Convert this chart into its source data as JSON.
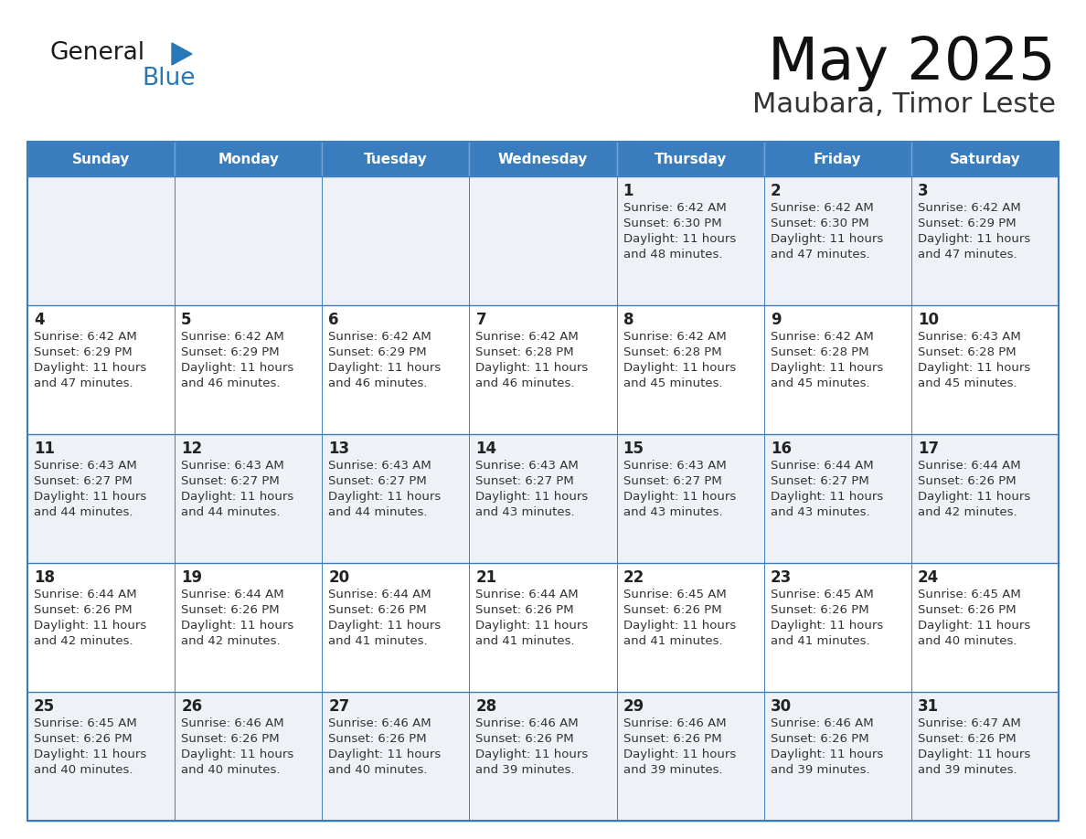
{
  "title": "May 2025",
  "subtitle": "Maubara, Timor Leste",
  "days_of_week": [
    "Sunday",
    "Monday",
    "Tuesday",
    "Wednesday",
    "Thursday",
    "Friday",
    "Saturday"
  ],
  "header_bg": "#3a7dbf",
  "header_text": "#ffffff",
  "row_bg_odd": "#eef2f7",
  "row_bg_even": "#ffffff",
  "border_color": "#3a7dbf",
  "day_number_color": "#222222",
  "cell_text_color": "#333333",
  "title_color": "#111111",
  "subtitle_color": "#333333",
  "general_text_color": "#1a1a1a",
  "blue_logo_color": "#2878b8",
  "triangle_color": "#2878b8",
  "calendar": [
    [
      {
        "day": "",
        "sunrise": "",
        "sunset": "",
        "daylight": ""
      },
      {
        "day": "",
        "sunrise": "",
        "sunset": "",
        "daylight": ""
      },
      {
        "day": "",
        "sunrise": "",
        "sunset": "",
        "daylight": ""
      },
      {
        "day": "",
        "sunrise": "",
        "sunset": "",
        "daylight": ""
      },
      {
        "day": "1",
        "sunrise": "6:42 AM",
        "sunset": "6:30 PM",
        "daylight": "11 hours and 48 minutes."
      },
      {
        "day": "2",
        "sunrise": "6:42 AM",
        "sunset": "6:30 PM",
        "daylight": "11 hours and 47 minutes."
      },
      {
        "day": "3",
        "sunrise": "6:42 AM",
        "sunset": "6:29 PM",
        "daylight": "11 hours and 47 minutes."
      }
    ],
    [
      {
        "day": "4",
        "sunrise": "6:42 AM",
        "sunset": "6:29 PM",
        "daylight": "11 hours and 47 minutes."
      },
      {
        "day": "5",
        "sunrise": "6:42 AM",
        "sunset": "6:29 PM",
        "daylight": "11 hours and 46 minutes."
      },
      {
        "day": "6",
        "sunrise": "6:42 AM",
        "sunset": "6:29 PM",
        "daylight": "11 hours and 46 minutes."
      },
      {
        "day": "7",
        "sunrise": "6:42 AM",
        "sunset": "6:28 PM",
        "daylight": "11 hours and 46 minutes."
      },
      {
        "day": "8",
        "sunrise": "6:42 AM",
        "sunset": "6:28 PM",
        "daylight": "11 hours and 45 minutes."
      },
      {
        "day": "9",
        "sunrise": "6:42 AM",
        "sunset": "6:28 PM",
        "daylight": "11 hours and 45 minutes."
      },
      {
        "day": "10",
        "sunrise": "6:43 AM",
        "sunset": "6:28 PM",
        "daylight": "11 hours and 45 minutes."
      }
    ],
    [
      {
        "day": "11",
        "sunrise": "6:43 AM",
        "sunset": "6:27 PM",
        "daylight": "11 hours and 44 minutes."
      },
      {
        "day": "12",
        "sunrise": "6:43 AM",
        "sunset": "6:27 PM",
        "daylight": "11 hours and 44 minutes."
      },
      {
        "day": "13",
        "sunrise": "6:43 AM",
        "sunset": "6:27 PM",
        "daylight": "11 hours and 44 minutes."
      },
      {
        "day": "14",
        "sunrise": "6:43 AM",
        "sunset": "6:27 PM",
        "daylight": "11 hours and 43 minutes."
      },
      {
        "day": "15",
        "sunrise": "6:43 AM",
        "sunset": "6:27 PM",
        "daylight": "11 hours and 43 minutes."
      },
      {
        "day": "16",
        "sunrise": "6:44 AM",
        "sunset": "6:27 PM",
        "daylight": "11 hours and 43 minutes."
      },
      {
        "day": "17",
        "sunrise": "6:44 AM",
        "sunset": "6:26 PM",
        "daylight": "11 hours and 42 minutes."
      }
    ],
    [
      {
        "day": "18",
        "sunrise": "6:44 AM",
        "sunset": "6:26 PM",
        "daylight": "11 hours and 42 minutes."
      },
      {
        "day": "19",
        "sunrise": "6:44 AM",
        "sunset": "6:26 PM",
        "daylight": "11 hours and 42 minutes."
      },
      {
        "day": "20",
        "sunrise": "6:44 AM",
        "sunset": "6:26 PM",
        "daylight": "11 hours and 41 minutes."
      },
      {
        "day": "21",
        "sunrise": "6:44 AM",
        "sunset": "6:26 PM",
        "daylight": "11 hours and 41 minutes."
      },
      {
        "day": "22",
        "sunrise": "6:45 AM",
        "sunset": "6:26 PM",
        "daylight": "11 hours and 41 minutes."
      },
      {
        "day": "23",
        "sunrise": "6:45 AM",
        "sunset": "6:26 PM",
        "daylight": "11 hours and 41 minutes."
      },
      {
        "day": "24",
        "sunrise": "6:45 AM",
        "sunset": "6:26 PM",
        "daylight": "11 hours and 40 minutes."
      }
    ],
    [
      {
        "day": "25",
        "sunrise": "6:45 AM",
        "sunset": "6:26 PM",
        "daylight": "11 hours and 40 minutes."
      },
      {
        "day": "26",
        "sunrise": "6:46 AM",
        "sunset": "6:26 PM",
        "daylight": "11 hours and 40 minutes."
      },
      {
        "day": "27",
        "sunrise": "6:46 AM",
        "sunset": "6:26 PM",
        "daylight": "11 hours and 40 minutes."
      },
      {
        "day": "28",
        "sunrise": "6:46 AM",
        "sunset": "6:26 PM",
        "daylight": "11 hours and 39 minutes."
      },
      {
        "day": "29",
        "sunrise": "6:46 AM",
        "sunset": "6:26 PM",
        "daylight": "11 hours and 39 minutes."
      },
      {
        "day": "30",
        "sunrise": "6:46 AM",
        "sunset": "6:26 PM",
        "daylight": "11 hours and 39 minutes."
      },
      {
        "day": "31",
        "sunrise": "6:47 AM",
        "sunset": "6:26 PM",
        "daylight": "11 hours and 39 minutes."
      }
    ]
  ]
}
